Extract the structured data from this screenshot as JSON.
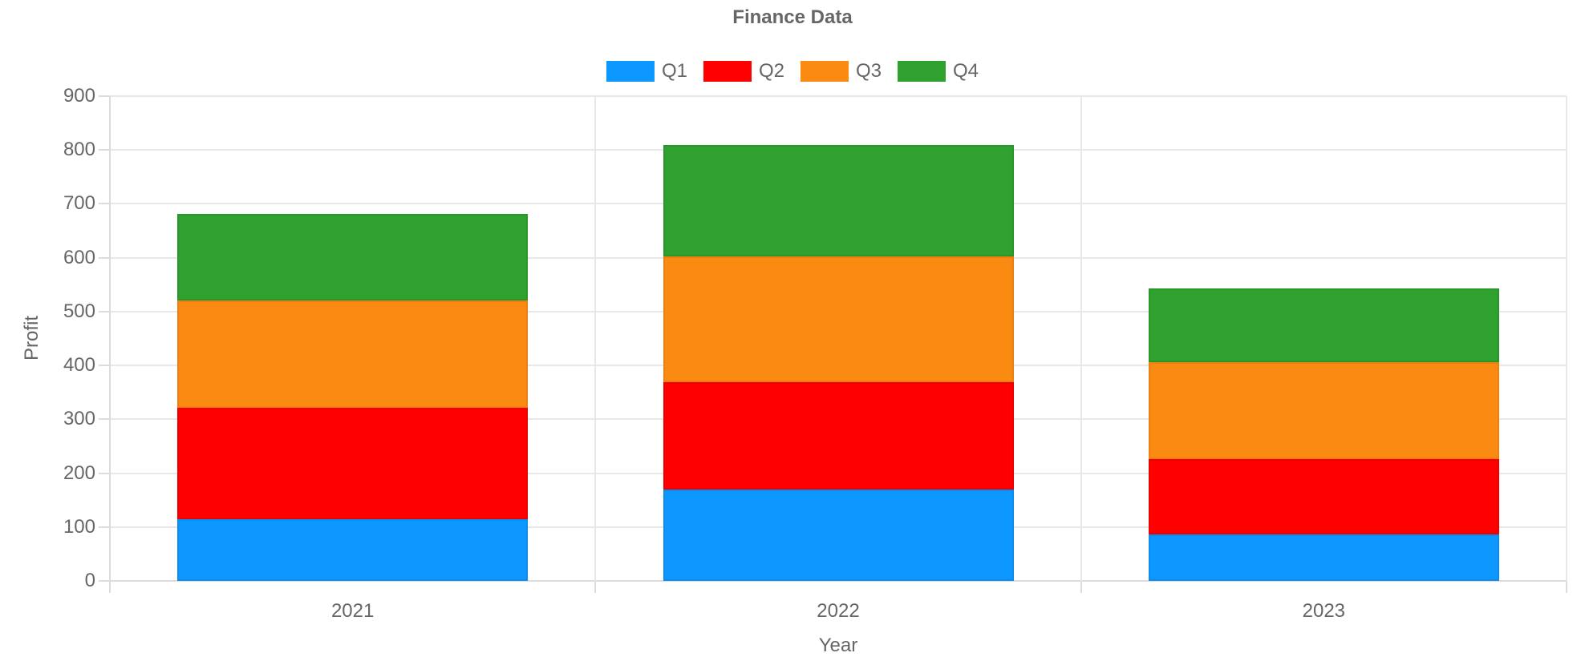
{
  "chart_data": {
    "type": "bar",
    "stacked": true,
    "title": "Finance Data",
    "xlabel": "Year",
    "ylabel": "Profit",
    "categories": [
      "2021",
      "2022",
      "2023"
    ],
    "series": [
      {
        "name": "Q1",
        "color": "#0D98FF",
        "values": [
          114,
          170,
          86
        ]
      },
      {
        "name": "Q2",
        "color": "#FF0000",
        "values": [
          208,
          199,
          140
        ]
      },
      {
        "name": "Q3",
        "color": "#FB8A12",
        "values": [
          198,
          233,
          180
        ]
      },
      {
        "name": "Q4",
        "color": "#2EA12E",
        "values": [
          161,
          207,
          137
        ]
      }
    ],
    "ylim": [
      0,
      900
    ],
    "ytick_step": 100,
    "yticks": [
      0,
      100,
      200,
      300,
      400,
      500,
      600,
      700,
      800,
      900
    ],
    "grid": true,
    "legend_position": "top"
  },
  "style": {
    "background": "#FFFFFF",
    "text_color": "#666666",
    "grid_color": "#E8E8E8",
    "axis_color": "#DCDCDC"
  }
}
